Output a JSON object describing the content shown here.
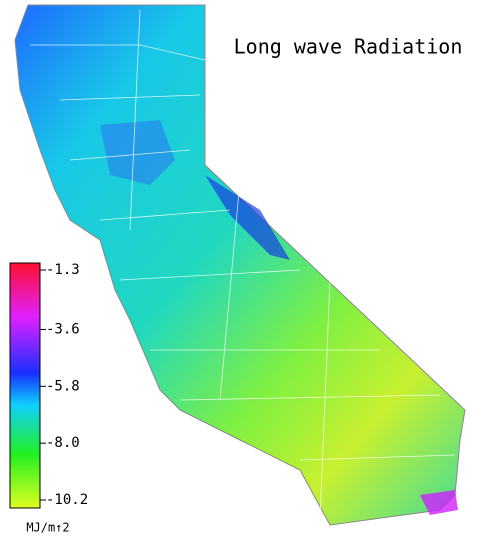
{
  "title": "Long wave Radiation",
  "colorbar": {
    "ticks": [
      -1.3,
      -3.6,
      -5.8,
      {
        "value": -8,
        "label": "-8.0"
      },
      -10.2
    ],
    "unit": "MJ/m↑2"
  }
}
